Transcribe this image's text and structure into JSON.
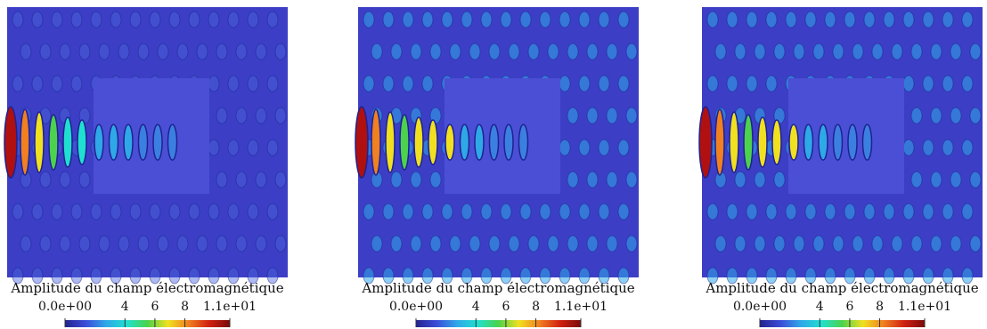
{
  "chart_data": [
    {
      "type": "heatmap",
      "colorbar_title": "Amplitude du champ électromagnétique",
      "clim": [
        0,
        11
      ],
      "cticks": [
        {
          "value": 0,
          "label": "0.0e+00"
        },
        4,
        6,
        8,
        {
          "value": 11,
          "label": "1.1e+01"
        }
      ],
      "colormap": [
        "#23238e",
        "#3b4cd8",
        "#2fa8e8",
        "#1fe0d0",
        "#4cd24c",
        "#f0e020",
        "#f08020",
        "#d02010",
        "#7a0a0a"
      ]
    },
    {
      "type": "heatmap",
      "colorbar_title": "Amplitude du champ électromagnétique",
      "clim": [
        0,
        11
      ],
      "cticks": [
        {
          "value": 0,
          "label": "0.0e+00"
        },
        4,
        6,
        8,
        {
          "value": 11,
          "label": "1.1e+01"
        }
      ],
      "colormap": [
        "#23238e",
        "#3b4cd8",
        "#2fa8e8",
        "#1fe0d0",
        "#4cd24c",
        "#f0e020",
        "#f08020",
        "#d02010",
        "#7a0a0a"
      ]
    },
    {
      "type": "heatmap",
      "colorbar_title": "Amplitude du champ électromagnétique",
      "clim": [
        0,
        11
      ],
      "cticks": [
        {
          "value": 0,
          "label": "0.0e+00"
        },
        4,
        6,
        8,
        {
          "value": 11,
          "label": "1.1e+01"
        }
      ],
      "colormap": [
        "#23238e",
        "#3b4cd8",
        "#2fa8e8",
        "#1fe0d0",
        "#4cd24c",
        "#f0e020",
        "#f08020",
        "#d02010",
        "#7a0a0a"
      ]
    }
  ]
}
